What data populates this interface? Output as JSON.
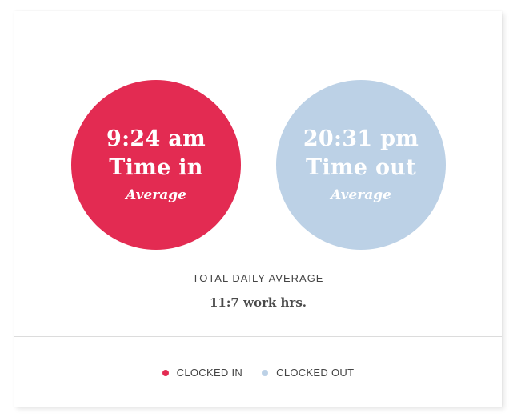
{
  "time_in": {
    "time": "9:24 am",
    "label": "Time in",
    "sublabel": "Average",
    "color": "#e32b52"
  },
  "time_out": {
    "time": "20:31 pm",
    "label": "Time out",
    "sublabel": "Average",
    "color": "#bcd1e6"
  },
  "total": {
    "label": "TOTAL DAILY AVERAGE",
    "value": "11:7 work hrs."
  },
  "legend": {
    "clocked_in": {
      "label": "CLOCKED IN",
      "color": "#e32b52"
    },
    "clocked_out": {
      "label": "CLOCKED OUT",
      "color": "#bcd1e6"
    }
  }
}
